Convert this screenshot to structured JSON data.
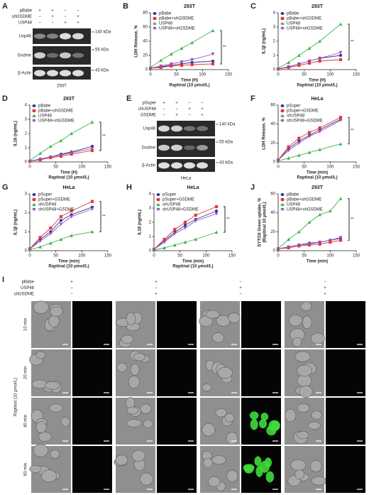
{
  "chart_data": [
    {
      "type": "line",
      "panel": "B",
      "title": "293T",
      "xlabel": "Time (H)",
      "xlabel_note": "Raptinal (10 μmol/L)",
      "ylabel": "LDH Release, %",
      "significance": "**",
      "x": [
        0,
        20,
        40,
        60,
        80,
        120
      ],
      "xlim": [
        0,
        150
      ],
      "xticks": [
        0,
        50,
        100,
        150
      ],
      "ylim": [
        0,
        80
      ],
      "yticks": [
        0,
        20,
        40,
        60,
        80
      ],
      "series": [
        {
          "name": "pBabe",
          "color": "#2b3a99",
          "values": [
            2,
            4,
            6,
            8,
            10,
            12
          ]
        },
        {
          "name": "pBabe+shGSDME",
          "color": "#e0393e",
          "values": [
            2,
            3,
            5,
            6,
            7,
            8
          ]
        },
        {
          "name": "USP48",
          "color": "#3cb44b",
          "values": [
            3,
            13,
            22,
            30,
            38,
            55
          ]
        },
        {
          "name": "USP48+shGSDME",
          "color": "#9b4fb4",
          "values": [
            2,
            5,
            8,
            11,
            14,
            22
          ]
        }
      ]
    },
    {
      "type": "line",
      "panel": "C",
      "title": "293T",
      "xlabel": "Time (H)",
      "xlabel_note": "Raptinal (10 μmol/L)",
      "ylabel": "IL1β (ng/mL)",
      "significance": "**",
      "x": [
        0,
        20,
        40,
        60,
        80,
        120
      ],
      "xlim": [
        0,
        150
      ],
      "xticks": [
        0,
        50,
        100,
        150
      ],
      "ylim": [
        0,
        4
      ],
      "yticks": [
        0,
        1,
        2,
        3,
        4
      ],
      "series": [
        {
          "name": "pBabe",
          "color": "#2b3a99",
          "values": [
            0.05,
            0.2,
            0.4,
            0.6,
            0.8,
            1.0
          ]
        },
        {
          "name": "pBabe+shGSDME",
          "color": "#e0393e",
          "values": [
            0.05,
            0.15,
            0.3,
            0.45,
            0.6,
            0.7
          ]
        },
        {
          "name": "USP48",
          "color": "#3cb44b",
          "values": [
            0.1,
            0.5,
            1.0,
            1.5,
            2.0,
            3.2
          ]
        },
        {
          "name": "USP48+shGSDME",
          "color": "#9b4fb4",
          "values": [
            0.05,
            0.2,
            0.4,
            0.6,
            0.8,
            1.2
          ]
        }
      ]
    },
    {
      "type": "line",
      "panel": "D",
      "title": "293T",
      "xlabel": "Time (H)",
      "xlabel_note": "Raptinal (10 μmol/L)",
      "ylabel": "IL18 (ng/mL)",
      "significance": "**",
      "x": [
        0,
        20,
        40,
        60,
        80,
        120
      ],
      "xlim": [
        0,
        150
      ],
      "xticks": [
        0,
        50,
        100,
        150
      ],
      "ylim": [
        0,
        4
      ],
      "yticks": [
        0,
        1,
        2,
        3,
        4
      ],
      "series": [
        {
          "name": "pBabe",
          "color": "#2b3a99",
          "values": [
            0.05,
            0.2,
            0.35,
            0.55,
            0.7,
            1.1
          ]
        },
        {
          "name": "pBabe+shGSDME",
          "color": "#e0393e",
          "values": [
            0.05,
            0.15,
            0.3,
            0.4,
            0.55,
            0.8
          ]
        },
        {
          "name": "USP48",
          "color": "#3cb44b",
          "values": [
            0.1,
            0.6,
            1.1,
            1.5,
            2.0,
            2.8
          ]
        },
        {
          "name": "USP48+shGSDME",
          "color": "#9b4fb4",
          "values": [
            0.05,
            0.2,
            0.35,
            0.5,
            0.65,
            0.95
          ]
        }
      ]
    },
    {
      "type": "line",
      "panel": "F",
      "title": "HeLa",
      "xlabel": "Time (min)",
      "xlabel_note": "Raptinal (10 μmol/L)",
      "ylabel": "LDH Release, %",
      "significance": "**",
      "x": [
        0,
        20,
        40,
        60,
        80,
        120
      ],
      "xlim": [
        0,
        150
      ],
      "xticks": [
        0,
        50,
        100,
        150
      ],
      "ylim": [
        0,
        60
      ],
      "yticks": [
        0,
        20,
        40,
        60
      ],
      "series": [
        {
          "name": "pSuper",
          "color": "#2b3a99",
          "values": [
            2,
            14,
            22,
            28,
            34,
            45
          ]
        },
        {
          "name": "pSuper+GSDME",
          "color": "#e0393e",
          "values": [
            2,
            16,
            25,
            31,
            36,
            47
          ]
        },
        {
          "name": "shUSP48",
          "color": "#3cb44b",
          "values": [
            1,
            4,
            7,
            10,
            13,
            19
          ]
        },
        {
          "name": "shUSP48+GSDME",
          "color": "#9b4fb4",
          "values": [
            2,
            12,
            20,
            27,
            32,
            44
          ]
        }
      ]
    },
    {
      "type": "line",
      "panel": "G",
      "title": "HeLa",
      "xlabel": "Time (min)",
      "xlabel_note": "Raptinal (10 μmol/L)",
      "ylabel": "IL1β (ng/mL)",
      "significance": "**",
      "x": [
        0,
        20,
        40,
        60,
        80,
        120
      ],
      "xlim": [
        0,
        150
      ],
      "xticks": [
        0,
        50,
        100,
        150
      ],
      "ylim": [
        0,
        3
      ],
      "yticks": [
        0,
        1,
        2,
        3
      ],
      "series": [
        {
          "name": "pSuper",
          "color": "#2b3a99",
          "values": [
            0.1,
            0.6,
            1.0,
            1.6,
            1.9,
            2.3
          ]
        },
        {
          "name": "pSuper+GSDME",
          "color": "#e0393e",
          "values": [
            0.1,
            0.7,
            1.2,
            1.8,
            2.1,
            2.6
          ]
        },
        {
          "name": "shUSP48",
          "color": "#3cb44b",
          "values": [
            0.05,
            0.2,
            0.4,
            0.6,
            0.8,
            1.0
          ]
        },
        {
          "name": "shUSP48+GSDME",
          "color": "#9b4fb4",
          "values": [
            0.1,
            0.5,
            0.9,
            1.4,
            1.8,
            2.2
          ]
        }
      ]
    },
    {
      "type": "line",
      "panel": "H",
      "title": "HeLa",
      "xlabel": "Time (min)",
      "xlabel_note": "Raptinal (10 μmol/L)",
      "ylabel": "IL18 (ng/mL)",
      "significance": "**",
      "x": [
        0,
        20,
        40,
        60,
        80,
        120
      ],
      "xlim": [
        0,
        150
      ],
      "xticks": [
        0,
        50,
        100,
        150
      ],
      "ylim": [
        0,
        4
      ],
      "yticks": [
        0,
        1,
        2,
        3,
        4
      ],
      "series": [
        {
          "name": "pSuper",
          "color": "#2b3a99",
          "values": [
            0.1,
            0.7,
            1.3,
            1.8,
            2.2,
            2.8
          ]
        },
        {
          "name": "pSuper+GSDME",
          "color": "#e0393e",
          "values": [
            0.1,
            0.8,
            1.5,
            2.0,
            2.5,
            3.1
          ]
        },
        {
          "name": "shUSP48",
          "color": "#3cb44b",
          "values": [
            0.05,
            0.2,
            0.4,
            0.6,
            0.8,
            1.3
          ]
        },
        {
          "name": "shUSP48+GSDME",
          "color": "#9b4fb4",
          "values": [
            0.1,
            0.6,
            1.2,
            1.6,
            2.1,
            2.6
          ]
        }
      ]
    },
    {
      "type": "line",
      "panel": "J",
      "title": "293T",
      "xlabel": "Time (min)",
      "ylabel": [
        "SYTOX Green uptake, %",
        "(Raptinal 10 μmol/L)"
      ],
      "significance": "**",
      "x": [
        0,
        20,
        40,
        60,
        80,
        100,
        120
      ],
      "xlim": [
        0,
        150
      ],
      "xticks": [
        0,
        50,
        100,
        150
      ],
      "ylim": [
        0,
        60
      ],
      "yticks": [
        0,
        20,
        40,
        60
      ],
      "series": [
        {
          "name": "pBabe",
          "color": "#2b3a99",
          "values": [
            2,
            4,
            6,
            8,
            9,
            11,
            13
          ]
        },
        {
          "name": "pBabe+shGSDME",
          "color": "#e0393e",
          "values": [
            2,
            3,
            5,
            6,
            7,
            9,
            11
          ]
        },
        {
          "name": "USP48",
          "color": "#3cb44b",
          "values": [
            2,
            12,
            20,
            30,
            38,
            42,
            55
          ]
        },
        {
          "name": "USP48+shGSDME",
          "color": "#9b4fb4",
          "values": [
            2,
            4,
            6,
            7,
            9,
            11,
            14
          ]
        }
      ]
    }
  ],
  "blots": [
    {
      "panel": "A",
      "cell_line": "293T",
      "conditions": [
        {
          "name": "pBabe",
          "signs": [
            "+",
            "+",
            "−",
            "−"
          ]
        },
        {
          "name": "shGSDME",
          "signs": [
            "−",
            "+",
            "−",
            "+"
          ]
        },
        {
          "name": "USP48",
          "signs": [
            "−",
            "−",
            "+",
            "+"
          ]
        }
      ],
      "bands": [
        {
          "name": "Usp48",
          "size": "140 kDa"
        },
        {
          "name": "Gsdme",
          "size": "55 kDa"
        },
        {
          "name": "β-Actin",
          "size": "43 kDa"
        }
      ]
    },
    {
      "panel": "E",
      "cell_line": "HeLa",
      "conditions": [
        {
          "name": "pSuper",
          "signs": [
            "+",
            "+",
            "−",
            "−"
          ]
        },
        {
          "name": "shUSP48",
          "signs": [
            "−",
            "−",
            "+",
            "+"
          ]
        },
        {
          "name": "GSDME",
          "signs": [
            "−",
            "+",
            "−",
            "+"
          ]
        }
      ],
      "bands": [
        {
          "name": "Usp48",
          "size": "140 kDa"
        },
        {
          "name": "Gsdme",
          "size": "55 kDa"
        },
        {
          "name": "β-Actin",
          "size": "43 kDa"
        }
      ]
    }
  ],
  "microscopy": {
    "panel": "I",
    "ylabel": "Raptinal (10 μmol/L)",
    "conditions": [
      {
        "name": "pBabe",
        "signs": [
          "+",
          "+",
          "−",
          "−"
        ]
      },
      {
        "name": "USP48",
        "signs": [
          "−",
          "−",
          "+",
          "+"
        ]
      },
      {
        "name": "shGSDME",
        "signs": [
          "−",
          "+",
          "−",
          "+"
        ]
      }
    ],
    "times": [
      "10 min",
      "20 min",
      "40 min",
      "60 min"
    ]
  }
}
